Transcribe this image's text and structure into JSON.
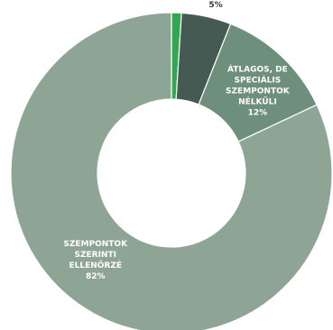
{
  "chart_data": {
    "type": "pie",
    "donut": true,
    "start_angle_deg": 0,
    "slices": [
      {
        "label": "",
        "value": 1,
        "display": "",
        "color": "#2fa84f",
        "label_lines": []
      },
      {
        "label": "",
        "value": 5,
        "display": "5%",
        "color": "#445a52",
        "label_lines": []
      },
      {
        "label": "ÁTLAGOS, DE SPECIÁLIS SZEMPONTOK NÉLKÜLI",
        "value": 12,
        "display": "12%",
        "color": "#6f8f7d",
        "label_lines": [
          "ÁTLAGOS, DE",
          "SPECIÁLIS",
          "SZEMPONTOK",
          "NÉLKÜLI",
          "12%"
        ]
      },
      {
        "label": "SZEMPONTOK SZERINTI ELLENŐRZÉ",
        "value": 82,
        "display": "82%",
        "color": "#8ea596",
        "label_lines": [
          "SZEMPONTOK",
          "SZERINTI",
          "ELLENŐRZÉ",
          "82%"
        ]
      }
    ]
  }
}
